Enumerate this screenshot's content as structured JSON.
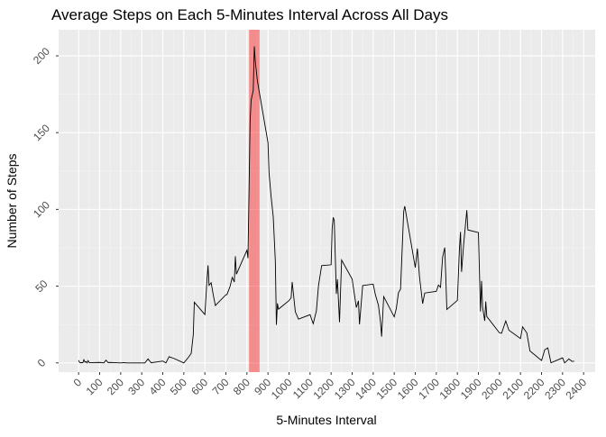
{
  "chart_data": {
    "type": "line",
    "title": "Average Steps on Each 5-Minutes Interval Across All Days",
    "x_label": "5-Minutes Interval",
    "y_label": "Number of Steps",
    "x": [
      0,
      5,
      10,
      15,
      20,
      25,
      30,
      35,
      40,
      45,
      50,
      55,
      100,
      110,
      120,
      130,
      140,
      150,
      200,
      215,
      230,
      245,
      300,
      315,
      330,
      345,
      400,
      415,
      430,
      440,
      450,
      500,
      520,
      535,
      545,
      550,
      600,
      610,
      615,
      620,
      630,
      640,
      650,
      700,
      705,
      720,
      730,
      740,
      745,
      750,
      800,
      805,
      815,
      820,
      830,
      835,
      840,
      850,
      900,
      905,
      915,
      925,
      935,
      940,
      945,
      950,
      1000,
      1010,
      1015,
      1030,
      1045,
      1100,
      1115,
      1130,
      1140,
      1155,
      1200,
      1205,
      1210,
      1215,
      1225,
      1230,
      1240,
      1250,
      1300,
      1320,
      1330,
      1335,
      1350,
      1400,
      1410,
      1425,
      1435,
      1440,
      1450,
      1500,
      1510,
      1520,
      1530,
      1545,
      1550,
      1600,
      1610,
      1620,
      1635,
      1645,
      1700,
      1710,
      1720,
      1730,
      1740,
      1745,
      1750,
      1800,
      1810,
      1815,
      1820,
      1830,
      1845,
      1850,
      1900,
      1910,
      1915,
      1920,
      1930,
      1935,
      1940,
      2000,
      2010,
      2030,
      2045,
      2100,
      2110,
      2130,
      2145,
      2200,
      2205,
      2215,
      2230,
      2245,
      2300,
      2310,
      2330,
      2345,
      2355
    ],
    "values": [
      1.7,
      0.3,
      0.1,
      0.2,
      0.1,
      2.1,
      0.5,
      0.9,
      0,
      1.5,
      0.3,
      0.1,
      0.3,
      0.2,
      0,
      1.8,
      0.2,
      0.3,
      0,
      0.2,
      0,
      0,
      0,
      0,
      2.6,
      0.1,
      1.2,
      0,
      4.1,
      3.5,
      3.1,
      0,
      3.3,
      6.1,
      18.3,
      39.5,
      31.5,
      53.8,
      63.5,
      50.5,
      52.2,
      44.2,
      37.4,
      44.4,
      44.5,
      49.9,
      55.7,
      52.7,
      69.5,
      57.8,
      73.4,
      68.2,
      157.5,
      171.2,
      177.3,
      206.2,
      195.9,
      183.4,
      143.5,
      124,
      108.1,
      95.2,
      66.2,
      24.8,
      38.8,
      35,
      40.6,
      42.4,
      52.7,
      33.3,
      28.5,
      31.4,
      25.5,
      33.9,
      50.2,
      63.4,
      63.9,
      87.6,
      94.8,
      92.8,
      45,
      54.5,
      26.5,
      67,
      54.6,
      36.1,
      40.4,
      25.1,
      50.4,
      51.3,
      44.7,
      37.5,
      26.4,
      17.1,
      43.2,
      30,
      35.5,
      45.7,
      48.1,
      98.7,
      102.1,
      62.1,
      74.5,
      56.2,
      38.6,
      45.5,
      46.6,
      50.7,
      49.2,
      68.9,
      75.1,
      56.5,
      34.8,
      40.7,
      74.7,
      85.3,
      59.3,
      77.4,
      99.5,
      86.6,
      84.9,
      33.5,
      53.4,
      36.3,
      27.4,
      40,
      30.2,
      19.6,
      19.3,
      27.3,
      21.3,
      15.9,
      23.5,
      19.6,
      7.8,
      1.6,
      3.7,
      8.5,
      9.8,
      0.1,
      3.3,
      0,
      2.6,
      1,
      1.1
    ],
    "color": "#000000",
    "highlight": {
      "xrange": [
        810,
        860
      ],
      "color": "#ff0000"
    },
    "xlim": [
      -95,
      2455
    ],
    "ylim": [
      -6,
      217
    ],
    "xticks": [
      0,
      100,
      200,
      300,
      400,
      500,
      600,
      700,
      800,
      900,
      1000,
      1100,
      1200,
      1300,
      1400,
      1500,
      1600,
      1700,
      1800,
      1900,
      2000,
      2100,
      2200,
      2300,
      2400
    ],
    "yticks": [
      0,
      50,
      100,
      150,
      200
    ],
    "grid": true
  }
}
